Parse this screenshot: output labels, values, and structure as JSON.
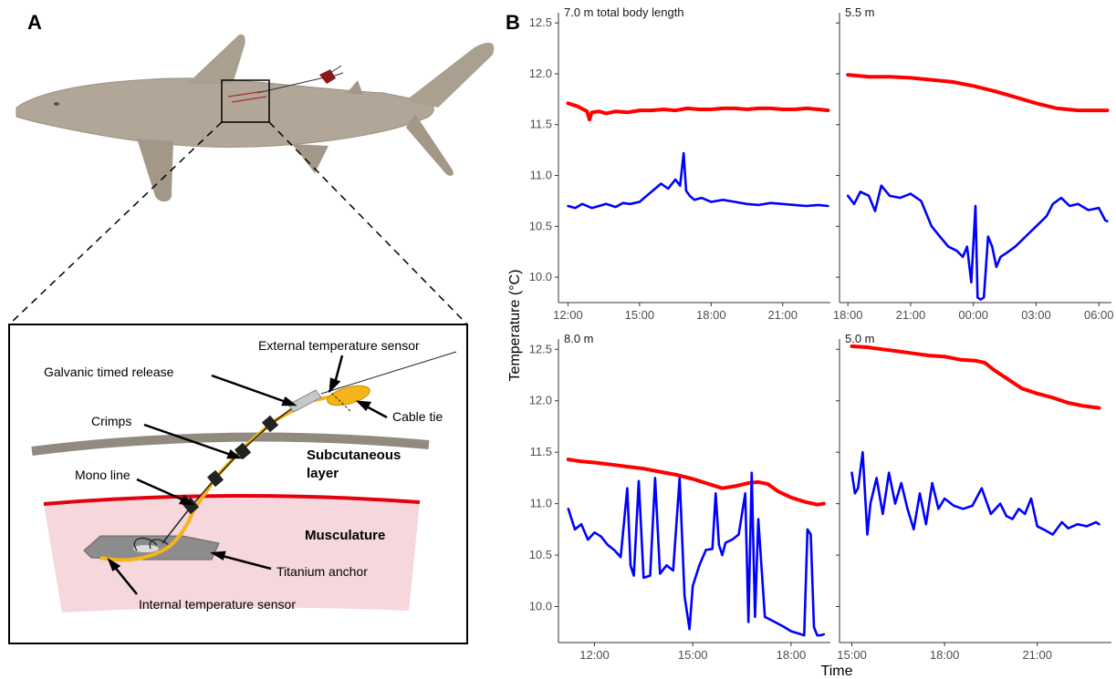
{
  "panel_a": {
    "letter": "A",
    "labels": {
      "external_sensor": "External temperature sensor",
      "galvanic": "Galvanic timed release",
      "crimps": "Crimps",
      "mono_line": "Mono line",
      "cable_tie": "Cable tie",
      "subcutaneous_1": "Subcutaneous",
      "subcutaneous_2": "layer",
      "musculature": "Musculature",
      "titanium_anchor": "Titanium anchor",
      "internal_sensor": "Internal temperature sensor"
    },
    "colors": {
      "shark": "#b1a697",
      "subcutaneous": "#918a80",
      "muscle_fill": "#f5d7dc",
      "muscle_edge": "#e3000f",
      "cable": "#f4b41a",
      "release": "#c8c8c8"
    }
  },
  "panel_b": {
    "letter": "B",
    "xlabel": "Time",
    "ylabel": "Temperature (°C)",
    "series_colors": {
      "external": "#ff0000",
      "internal": "#0000ff"
    }
  },
  "chart_data": [
    {
      "type": "line",
      "facet_label": "7.0 m total body length",
      "xlim": [
        11.6,
        23.0
      ],
      "ylim": [
        9.75,
        12.6
      ],
      "yticks": [
        10.0,
        10.5,
        11.0,
        11.5,
        12.0,
        12.5
      ],
      "xticks": [
        {
          "v": 12,
          "label": "12:00"
        },
        {
          "v": 15,
          "label": "15:00"
        },
        {
          "v": 18,
          "label": "18:00"
        },
        {
          "v": 21,
          "label": "21:00"
        }
      ],
      "series": [
        {
          "color": "#ff0000",
          "x": [
            12.0,
            12.4,
            12.8,
            12.9,
            13.0,
            13.3,
            13.6,
            14.0,
            14.5,
            15.0,
            15.5,
            16.0,
            16.5,
            17.0,
            17.5,
            18.0,
            18.5,
            19.0,
            19.5,
            20.0,
            20.5,
            21.0,
            21.5,
            22.0,
            22.5,
            22.9
          ],
          "y": [
            11.71,
            11.68,
            11.63,
            11.55,
            11.62,
            11.63,
            11.61,
            11.63,
            11.62,
            11.64,
            11.64,
            11.65,
            11.64,
            11.66,
            11.65,
            11.65,
            11.66,
            11.66,
            11.65,
            11.66,
            11.66,
            11.65,
            11.65,
            11.66,
            11.65,
            11.64
          ]
        },
        {
          "color": "#0000ff",
          "x": [
            12.0,
            12.3,
            12.6,
            13.0,
            13.3,
            13.6,
            14.0,
            14.3,
            14.6,
            15.0,
            15.3,
            15.6,
            15.9,
            16.2,
            16.5,
            16.7,
            16.85,
            16.95,
            17.1,
            17.3,
            17.6,
            18.0,
            18.5,
            19.0,
            19.5,
            20.0,
            20.5,
            21.0,
            21.5,
            22.0,
            22.5,
            22.9
          ],
          "y": [
            10.7,
            10.68,
            10.72,
            10.68,
            10.7,
            10.72,
            10.69,
            10.73,
            10.72,
            10.74,
            10.8,
            10.86,
            10.92,
            10.87,
            10.96,
            10.9,
            11.22,
            10.85,
            10.8,
            10.76,
            10.78,
            10.74,
            10.76,
            10.74,
            10.72,
            10.71,
            10.73,
            10.72,
            10.71,
            10.7,
            10.71,
            10.7
          ]
        }
      ]
    },
    {
      "type": "line",
      "facet_label": "5.5 m",
      "xlim": [
        17.6,
        30.6
      ],
      "ylim": [
        9.75,
        12.6
      ],
      "yticks": [
        10.0,
        10.5,
        11.0,
        11.5,
        12.0,
        12.5
      ],
      "xticks": [
        {
          "v": 18,
          "label": "18:00"
        },
        {
          "v": 21,
          "label": "21:00"
        },
        {
          "v": 24,
          "label": "00:00"
        },
        {
          "v": 27,
          "label": "03:00"
        },
        {
          "v": 30,
          "label": "06:00"
        }
      ],
      "series": [
        {
          "color": "#ff0000",
          "x": [
            18.0,
            19.0,
            20.0,
            21.0,
            22.0,
            23.0,
            24.0,
            25.0,
            26.0,
            27.0,
            28.0,
            29.0,
            30.0,
            30.4
          ],
          "y": [
            11.99,
            11.97,
            11.97,
            11.96,
            11.94,
            11.92,
            11.88,
            11.83,
            11.77,
            11.71,
            11.66,
            11.64,
            11.64,
            11.64
          ]
        },
        {
          "color": "#0000ff",
          "x": [
            18.0,
            18.3,
            18.6,
            19.0,
            19.3,
            19.6,
            20.0,
            20.5,
            21.0,
            21.5,
            22.0,
            22.4,
            22.8,
            23.2,
            23.5,
            23.7,
            23.9,
            24.1,
            24.2,
            24.35,
            24.5,
            24.7,
            24.9,
            25.1,
            25.3,
            25.6,
            26.0,
            26.5,
            27.0,
            27.5,
            27.8,
            28.2,
            28.6,
            29.0,
            29.5,
            30.0,
            30.3,
            30.4
          ],
          "y": [
            10.8,
            10.72,
            10.84,
            10.8,
            10.65,
            10.9,
            10.8,
            10.78,
            10.82,
            10.75,
            10.5,
            10.4,
            10.3,
            10.26,
            10.2,
            10.3,
            9.95,
            10.7,
            9.8,
            9.78,
            9.8,
            10.4,
            10.3,
            10.1,
            10.2,
            10.24,
            10.3,
            10.4,
            10.5,
            10.6,
            10.72,
            10.78,
            10.7,
            10.72,
            10.66,
            10.68,
            10.56,
            10.55
          ]
        }
      ]
    },
    {
      "type": "line",
      "facet_label": "8.0 m",
      "xlim": [
        10.9,
        19.2
      ],
      "ylim": [
        9.65,
        12.6
      ],
      "yticks": [
        10.0,
        10.5,
        11.0,
        11.5,
        12.0,
        12.5
      ],
      "xticks": [
        {
          "v": 12,
          "label": "12:00"
        },
        {
          "v": 15,
          "label": "15:00"
        },
        {
          "v": 18,
          "label": "18:00"
        }
      ],
      "series": [
        {
          "color": "#ff0000",
          "x": [
            11.2,
            11.6,
            12.0,
            12.5,
            13.0,
            13.5,
            14.0,
            14.5,
            15.0,
            15.5,
            15.9,
            16.3,
            16.7,
            17.0,
            17.3,
            17.6,
            18.0,
            18.4,
            18.8,
            19.0
          ],
          "y": [
            11.43,
            11.41,
            11.4,
            11.38,
            11.36,
            11.34,
            11.31,
            11.28,
            11.24,
            11.19,
            11.15,
            11.17,
            11.2,
            11.21,
            11.19,
            11.12,
            11.06,
            11.02,
            10.99,
            11.0
          ]
        },
        {
          "color": "#0000ff",
          "x": [
            11.2,
            11.4,
            11.6,
            11.8,
            12.0,
            12.2,
            12.4,
            12.6,
            12.8,
            13.0,
            13.1,
            13.2,
            13.35,
            13.5,
            13.7,
            13.85,
            14.0,
            14.2,
            14.4,
            14.6,
            14.75,
            14.9,
            15.0,
            15.2,
            15.4,
            15.6,
            15.7,
            15.8,
            15.9,
            16.0,
            16.2,
            16.4,
            16.6,
            16.7,
            16.8,
            16.9,
            17.0,
            17.2,
            17.5,
            17.8,
            18.0,
            18.2,
            18.4,
            18.5,
            18.6,
            18.7,
            18.8,
            18.9,
            19.0
          ],
          "y": [
            10.95,
            10.75,
            10.8,
            10.65,
            10.72,
            10.68,
            10.6,
            10.55,
            10.48,
            11.15,
            10.4,
            10.3,
            11.22,
            10.28,
            10.3,
            11.25,
            10.32,
            10.4,
            10.35,
            11.25,
            10.1,
            9.78,
            10.2,
            10.4,
            10.55,
            10.56,
            11.1,
            10.6,
            10.5,
            10.62,
            10.65,
            10.7,
            11.1,
            9.85,
            11.3,
            9.9,
            10.85,
            9.9,
            9.85,
            9.8,
            9.76,
            9.74,
            9.72,
            10.75,
            10.7,
            9.8,
            9.72,
            9.72,
            9.73
          ]
        }
      ]
    },
    {
      "type": "line",
      "facet_label": "5.0 m",
      "xlim": [
        14.6,
        23.4
      ],
      "ylim": [
        9.65,
        12.6
      ],
      "yticks": [
        10.0,
        10.5,
        11.0,
        11.5,
        12.0,
        12.5
      ],
      "xticks": [
        {
          "v": 15,
          "label": "15:00"
        },
        {
          "v": 18,
          "label": "18:00"
        },
        {
          "v": 21,
          "label": "21:00"
        }
      ],
      "series": [
        {
          "color": "#ff0000",
          "x": [
            15.0,
            15.5,
            16.0,
            16.5,
            17.0,
            17.5,
            18.0,
            18.5,
            19.0,
            19.3,
            19.6,
            20.0,
            20.5,
            21.0,
            21.5,
            22.0,
            22.5,
            23.0
          ],
          "y": [
            12.53,
            12.52,
            12.5,
            12.48,
            12.46,
            12.44,
            12.43,
            12.4,
            12.39,
            12.37,
            12.3,
            12.22,
            12.12,
            12.07,
            12.03,
            11.98,
            11.95,
            11.93
          ]
        },
        {
          "color": "#0000ff",
          "x": [
            15.0,
            15.1,
            15.2,
            15.35,
            15.5,
            15.6,
            15.8,
            16.0,
            16.2,
            16.4,
            16.6,
            16.8,
            17.0,
            17.2,
            17.4,
            17.6,
            17.8,
            18.0,
            18.3,
            18.6,
            18.9,
            19.2,
            19.5,
            19.8,
            20.0,
            20.2,
            20.4,
            20.6,
            20.8,
            21.0,
            21.2,
            21.5,
            21.8,
            22.0,
            22.3,
            22.6,
            22.9,
            23.0
          ],
          "y": [
            11.3,
            11.1,
            11.15,
            11.5,
            10.7,
            11.0,
            11.25,
            10.9,
            11.3,
            11.0,
            11.2,
            10.95,
            10.75,
            11.1,
            10.8,
            11.2,
            10.95,
            11.05,
            10.98,
            10.95,
            10.98,
            11.15,
            10.9,
            11.0,
            10.88,
            10.85,
            10.95,
            10.9,
            11.05,
            10.78,
            10.75,
            10.7,
            10.82,
            10.76,
            10.8,
            10.78,
            10.82,
            10.8
          ]
        }
      ]
    }
  ]
}
